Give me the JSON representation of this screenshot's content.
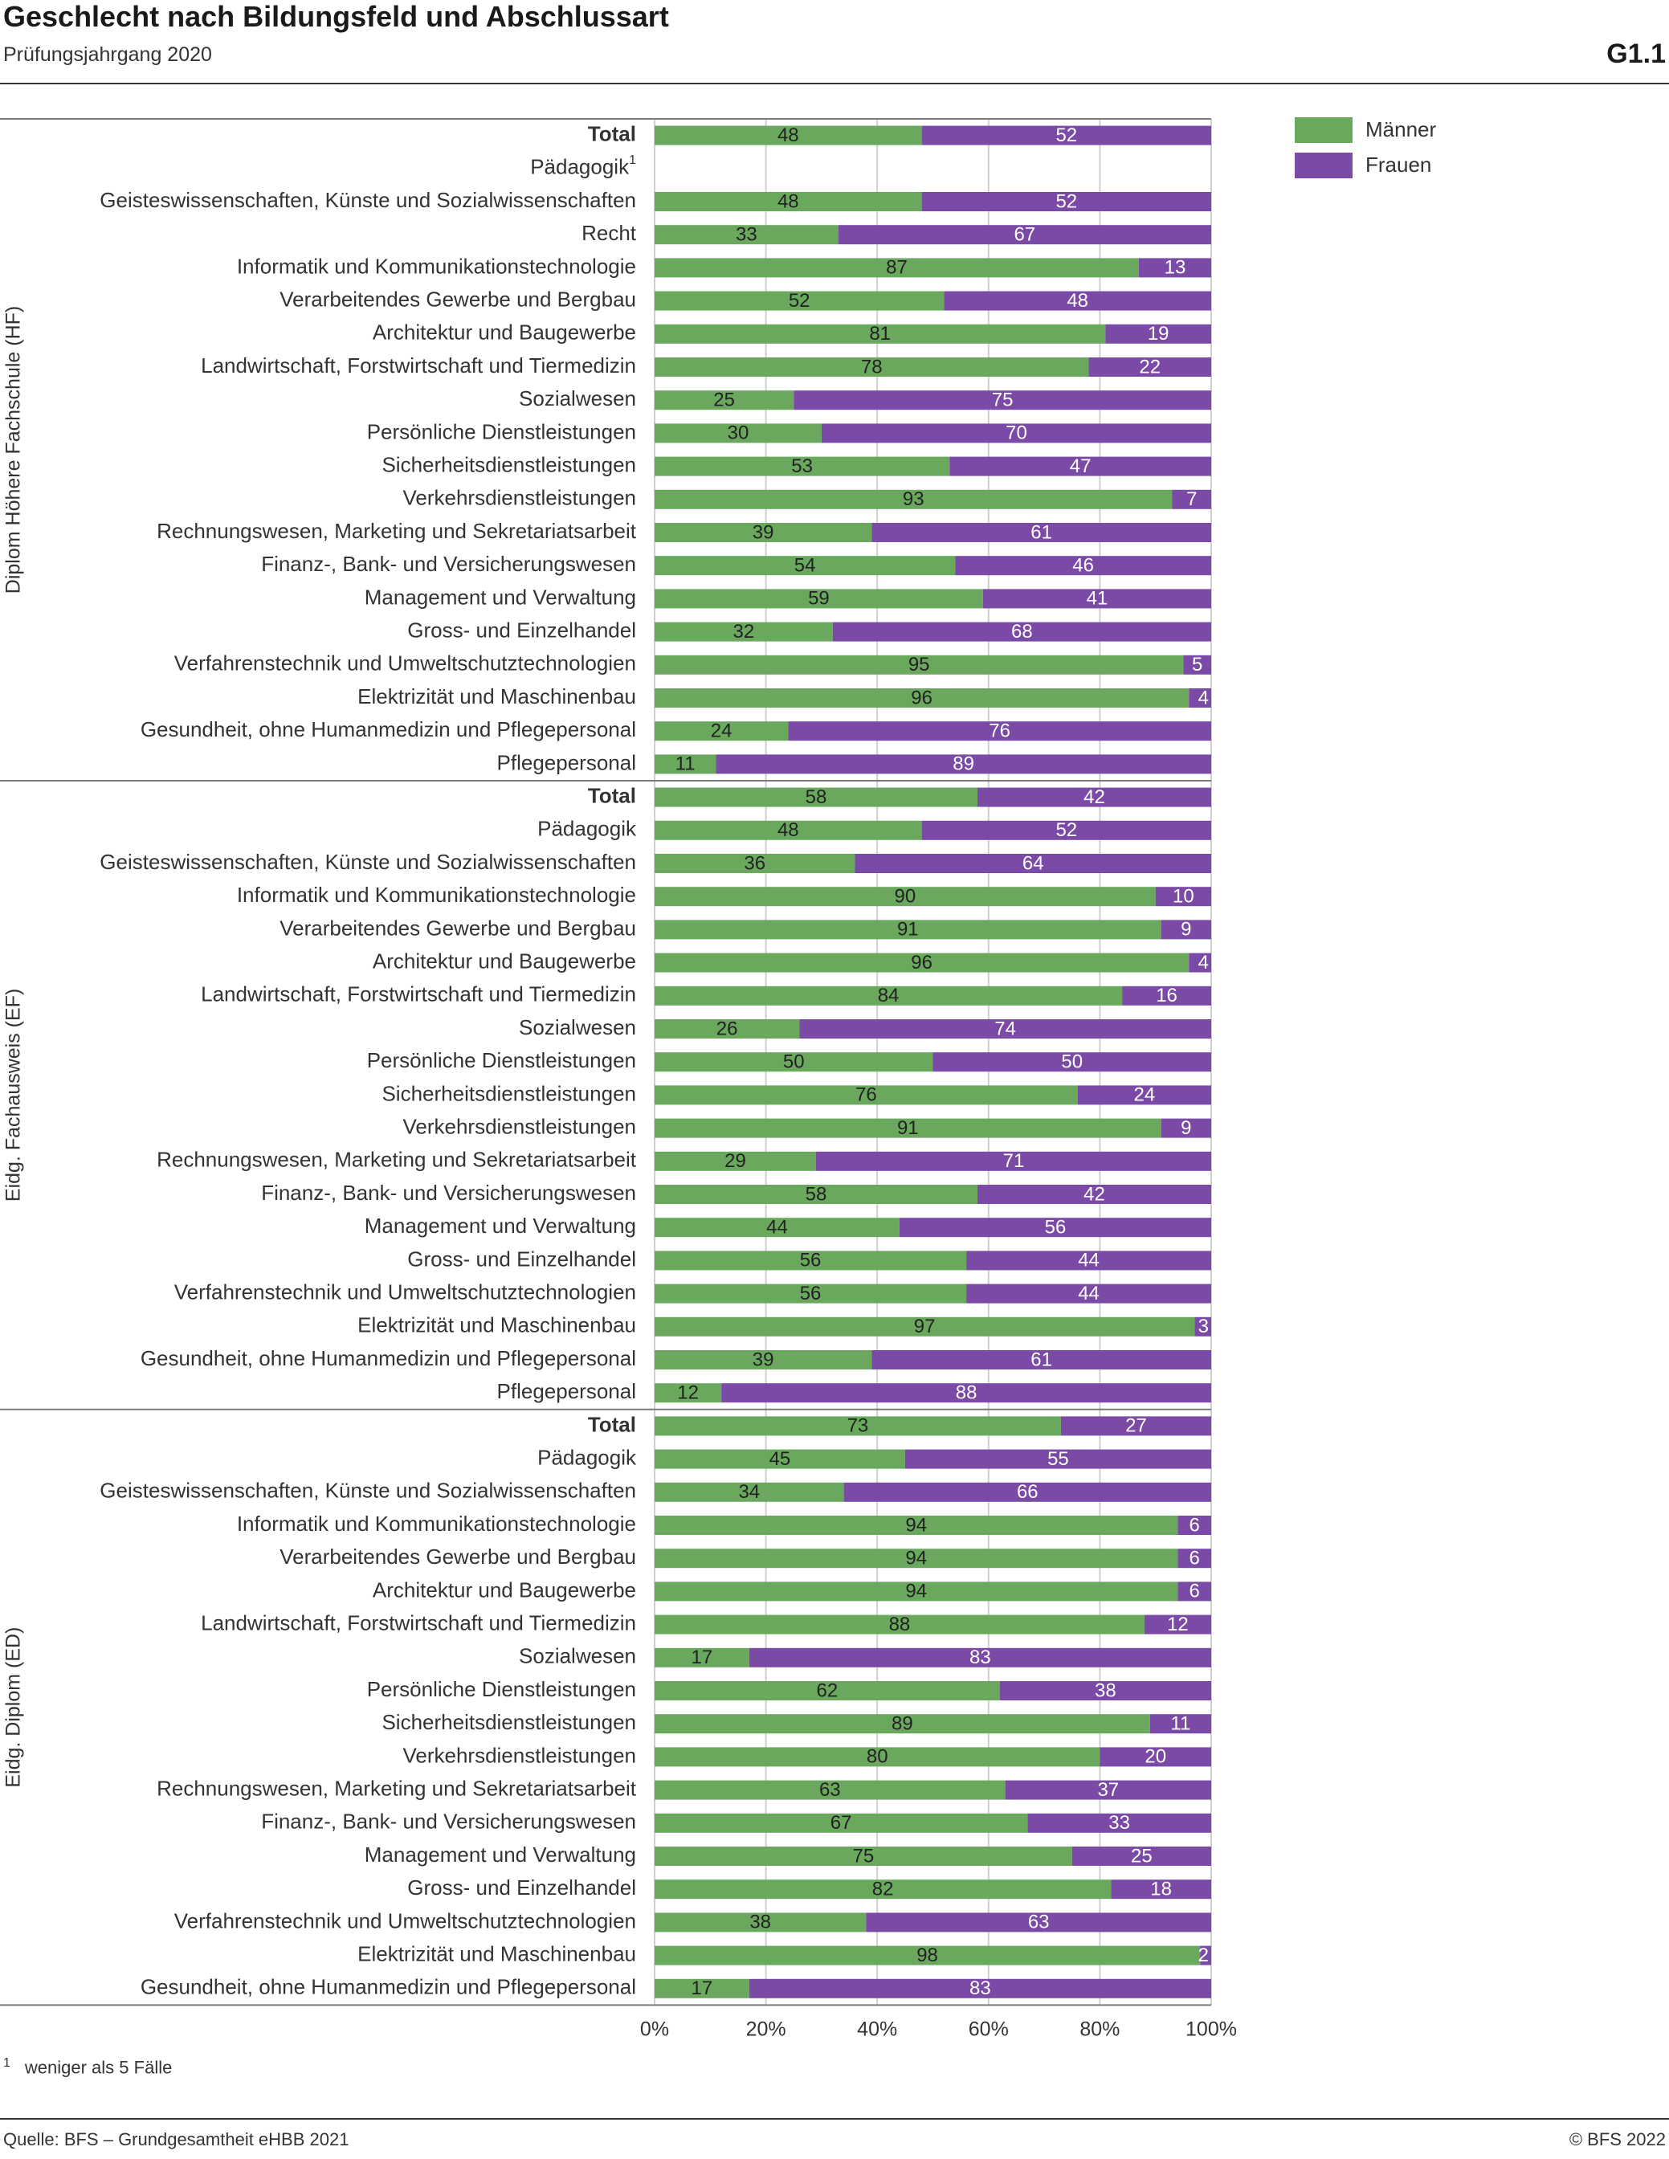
{
  "header": {
    "title": "Geschlecht nach Bildungsfeld und Abschlussart",
    "subtitle": "Prüfungsjahrgang 2020",
    "figure_number": "G1.1"
  },
  "footer": {
    "footnote_marker": "1",
    "footnote_text": "weniger als 5 Fälle",
    "source": "Quelle: BFS – Grundgesamtheit eHBB 2021",
    "copyright": "© BFS 2022"
  },
  "legend": [
    {
      "label": "Männer",
      "color": "#6aa85e"
    },
    {
      "label": "Frauen",
      "color": "#7b4aa6"
    }
  ],
  "chart_data": {
    "type": "bar",
    "orientation": "horizontal",
    "stacked": true,
    "unit": "%",
    "xlim": [
      0,
      100
    ],
    "x_ticks": [
      "0%",
      "20%",
      "40%",
      "60%",
      "80%",
      "100%"
    ],
    "grid": true,
    "legend_position": "top-right",
    "series": [
      {
        "name": "Männer",
        "color": "#6aa85e"
      },
      {
        "name": "Frauen",
        "color": "#7b4aa6"
      }
    ],
    "groups": [
      {
        "label": "Diplom Höhere Fachschule (HF)",
        "rows": [
          {
            "label": "Total",
            "bold": true,
            "m": 48,
            "f": 52
          },
          {
            "label": "Pädagogik",
            "footnote": "1",
            "m": null,
            "f": null
          },
          {
            "label": "Geisteswissenschaften, Künste und Sozialwissenschaften",
            "m": 48,
            "f": 52
          },
          {
            "label": "Recht",
            "m": 33,
            "f": 67
          },
          {
            "label": "Informatik und Kommunikationstechnologie",
            "m": 87,
            "f": 13
          },
          {
            "label": "Verarbeitendes Gewerbe und Bergbau",
            "m": 52,
            "f": 48
          },
          {
            "label": "Architektur und Baugewerbe",
            "m": 81,
            "f": 19
          },
          {
            "label": "Landwirtschaft, Forstwirtschaft und Tiermedizin",
            "m": 78,
            "f": 22
          },
          {
            "label": "Sozialwesen",
            "m": 25,
            "f": 75
          },
          {
            "label": "Persönliche Dienstleistungen",
            "m": 30,
            "f": 70
          },
          {
            "label": "Sicherheitsdienstleistungen",
            "m": 53,
            "f": 47
          },
          {
            "label": "Verkehrsdienstleistungen",
            "m": 93,
            "f": 7
          },
          {
            "label": "Rechnungswesen, Marketing und Sekretariatsarbeit",
            "m": 39,
            "f": 61
          },
          {
            "label": "Finanz-, Bank- und Versicherungswesen",
            "m": 54,
            "f": 46
          },
          {
            "label": "Management und Verwaltung",
            "m": 59,
            "f": 41
          },
          {
            "label": "Gross- und Einzelhandel",
            "m": 32,
            "f": 68
          },
          {
            "label": "Verfahrenstechnik und Umweltschutztechnologien",
            "m": 95,
            "f": 5
          },
          {
            "label": "Elektrizität und Maschinenbau",
            "m": 96,
            "f": 4
          },
          {
            "label": "Gesundheit, ohne Humanmedizin und Pflegepersonal",
            "m": 24,
            "f": 76
          },
          {
            "label": "Pflegepersonal",
            "m": 11,
            "f": 89
          }
        ]
      },
      {
        "label": "Eidg. Fachausweis (EF)",
        "rows": [
          {
            "label": "Total",
            "bold": true,
            "m": 58,
            "f": 42
          },
          {
            "label": "Pädagogik",
            "m": 48,
            "f": 52
          },
          {
            "label": "Geisteswissenschaften, Künste und Sozialwissenschaften",
            "m": 36,
            "f": 64
          },
          {
            "label": "Informatik und Kommunikationstechnologie",
            "m": 90,
            "f": 10
          },
          {
            "label": "Verarbeitendes Gewerbe und Bergbau",
            "m": 91,
            "f": 9
          },
          {
            "label": "Architektur und Baugewerbe",
            "m": 96,
            "f": 4
          },
          {
            "label": "Landwirtschaft, Forstwirtschaft und Tiermedizin",
            "m": 84,
            "f": 16
          },
          {
            "label": "Sozialwesen",
            "m": 26,
            "f": 74
          },
          {
            "label": "Persönliche Dienstleistungen",
            "m": 50,
            "f": 50
          },
          {
            "label": "Sicherheitsdienstleistungen",
            "m": 76,
            "f": 24
          },
          {
            "label": "Verkehrsdienstleistungen",
            "m": 91,
            "f": 9
          },
          {
            "label": "Rechnungswesen, Marketing und Sekretariatsarbeit",
            "m": 29,
            "f": 71
          },
          {
            "label": "Finanz-, Bank- und Versicherungswesen",
            "m": 58,
            "f": 42
          },
          {
            "label": "Management und Verwaltung",
            "m": 44,
            "f": 56
          },
          {
            "label": "Gross- und Einzelhandel",
            "m": 56,
            "f": 44
          },
          {
            "label": "Verfahrenstechnik und Umweltschutztechnologien",
            "m": 56,
            "f": 44
          },
          {
            "label": "Elektrizität und Maschinenbau",
            "m": 97,
            "f": 3
          },
          {
            "label": "Gesundheit, ohne Humanmedizin und Pflegepersonal",
            "m": 39,
            "f": 61
          },
          {
            "label": "Pflegepersonal",
            "m": 12,
            "f": 88
          }
        ]
      },
      {
        "label": "Eidg. Diplom (ED)",
        "rows": [
          {
            "label": "Total",
            "bold": true,
            "m": 73,
            "f": 27
          },
          {
            "label": "Pädagogik",
            "m": 45,
            "f": 55
          },
          {
            "label": "Geisteswissenschaften, Künste und Sozialwissenschaften",
            "m": 34,
            "f": 66
          },
          {
            "label": "Informatik und Kommunikationstechnologie",
            "m": 94,
            "f": 6
          },
          {
            "label": "Verarbeitendes Gewerbe und Bergbau",
            "m": 94,
            "f": 6
          },
          {
            "label": "Architektur und Baugewerbe",
            "m": 94,
            "f": 6
          },
          {
            "label": "Landwirtschaft, Forstwirtschaft und Tiermedizin",
            "m": 88,
            "f": 12
          },
          {
            "label": "Sozialwesen",
            "m": 17,
            "f": 83
          },
          {
            "label": "Persönliche Dienstleistungen",
            "m": 62,
            "f": 38
          },
          {
            "label": "Sicherheitsdienstleistungen",
            "m": 89,
            "f": 11
          },
          {
            "label": "Verkehrsdienstleistungen",
            "m": 80,
            "f": 20
          },
          {
            "label": "Rechnungswesen, Marketing und Sekretariatsarbeit",
            "m": 63,
            "f": 37
          },
          {
            "label": "Finanz-, Bank- und Versicherungswesen",
            "m": 67,
            "f": 33
          },
          {
            "label": "Management und Verwaltung",
            "m": 75,
            "f": 25
          },
          {
            "label": "Gross- und Einzelhandel",
            "m": 82,
            "f": 18
          },
          {
            "label": "Verfahrenstechnik und Umweltschutztechnologien",
            "m": 38,
            "f": 63
          },
          {
            "label": "Elektrizität und Maschinenbau",
            "m": 98,
            "f": 2
          },
          {
            "label": "Gesundheit, ohne Humanmedizin und Pflegepersonal",
            "m": 17,
            "f": 83
          }
        ]
      }
    ]
  }
}
